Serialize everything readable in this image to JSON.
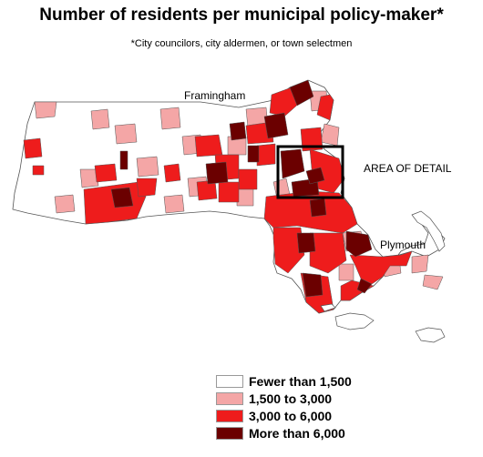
{
  "title": "Number of residents per municipal policy-maker*",
  "subtitle": "*City councilors, city aldermen, or town selectmen",
  "labels": {
    "framingham": "Framingham",
    "area_of_detail": "AREA OF DETAIL",
    "plymouth": "Plymouth"
  },
  "colors": {
    "fewer_than_1500": "#ffffff",
    "1500_to_3000": "#f4a6a6",
    "3000_to_6000": "#ee1c1c",
    "more_than_6000": "#6b0000",
    "border": "#555555"
  },
  "legend": [
    {
      "label": "Fewer than 1,500",
      "color": "#ffffff"
    },
    {
      "label": "1,500 to 3,000",
      "color": "#f4a6a6"
    },
    {
      "label": "3,000 to 6,000",
      "color": "#ee1c1c"
    },
    {
      "label": "More than 6,000",
      "color": "#6b0000"
    }
  ]
}
